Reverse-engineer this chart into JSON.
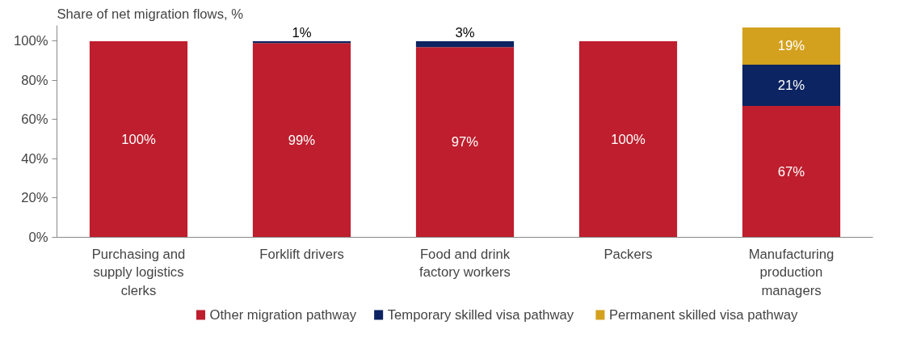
{
  "chart_data": {
    "type": "bar",
    "stacked": true,
    "title": "Share of net migration flows, %",
    "categories": [
      "Purchasing and supply logistics clerks",
      "Forklift drivers",
      "Food and drink factory workers",
      "Packers",
      "Manufacturing production managers"
    ],
    "series": [
      {
        "name": "Other migration pathway",
        "color": "#be1e2d",
        "values": [
          100,
          99,
          97,
          100,
          67
        ],
        "value_labels": [
          "100%",
          "99%",
          "97%",
          "100%",
          "67%"
        ]
      },
      {
        "name": "Temporary skilled visa pathway",
        "color": "#0c2461",
        "values": [
          0,
          1,
          3,
          0,
          21
        ],
        "value_labels": [
          null,
          "1%",
          "3%",
          null,
          "21%"
        ]
      },
      {
        "name": "Permanent skilled visa pathway",
        "color": "#d4a11e",
        "values": [
          0,
          0,
          0,
          0,
          19
        ],
        "value_labels": [
          null,
          null,
          null,
          null,
          "19%"
        ]
      }
    ],
    "ylim": [
      0,
      108
    ],
    "yticks": [
      {
        "value": 0,
        "label": "0%"
      },
      {
        "value": 20,
        "label": "20%"
      },
      {
        "value": 40,
        "label": "40%"
      },
      {
        "value": 60,
        "label": "60%"
      },
      {
        "value": 80,
        "label": "80%"
      },
      {
        "value": 100,
        "label": "100%"
      }
    ],
    "grid": false,
    "legend": "bottom"
  }
}
